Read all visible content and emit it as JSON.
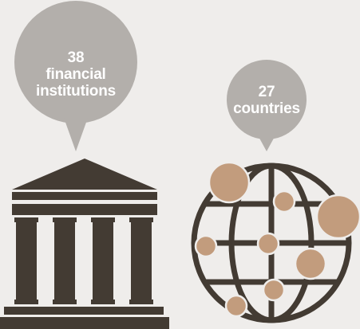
{
  "stats": [
    {
      "value": "38",
      "label": "financial\ninstitutions"
    },
    {
      "value": "27",
      "label": "countries"
    }
  ],
  "icons": [
    "bank-building-icon",
    "globe-network-icon"
  ],
  "colors": {
    "background": "#efedeb",
    "bubble": "#b3afab",
    "icon_dark": "#433b33",
    "node": "#c29c7d",
    "text": "#ffffff"
  }
}
